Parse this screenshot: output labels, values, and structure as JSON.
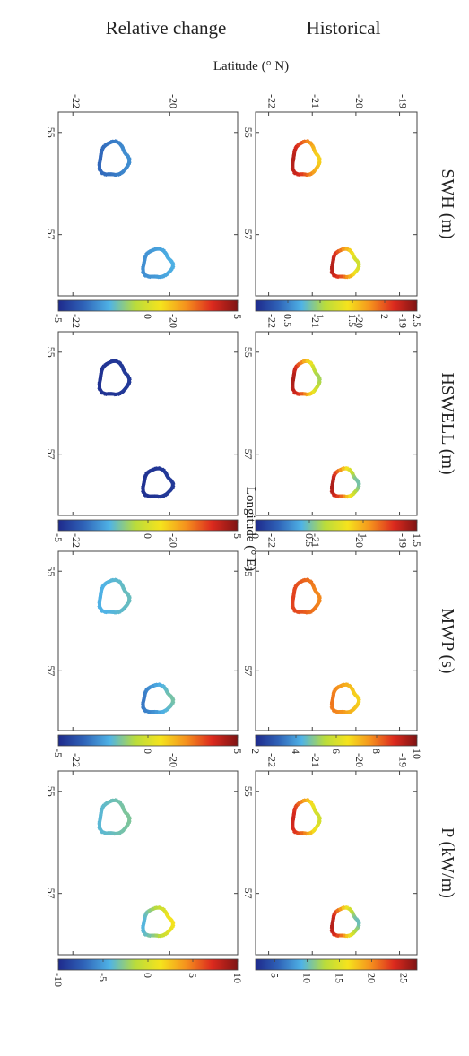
{
  "labels": {
    "historical": "Historical",
    "relative": "Relative change",
    "latitude": "Latitude (° N)",
    "longitude": "Longitude (° E)"
  },
  "variables": [
    {
      "key": "swh",
      "title": "SWH (m)"
    },
    {
      "key": "hswell",
      "title": "HSWELL (m)"
    },
    {
      "key": "mwp",
      "title": "MWP (s)"
    },
    {
      "key": "p",
      "title": "P (kW/m)"
    }
  ],
  "chart_data": {
    "type": "heatmap",
    "layout": "2 rows (Historical, Relative change) x 4 columns (SWH, HSWELL, MWP, P); figure rotated 90 degrees",
    "x_axis": {
      "label": "Longitude (° E)",
      "range": [
        54.6,
        58.2
      ],
      "ticks": [
        55,
        57
      ]
    },
    "y_axis": {
      "label": "Latitude (° N)",
      "historical_ticks": [
        -22,
        -21,
        -20,
        -19
      ],
      "relative_ticks": [
        -22,
        -20
      ],
      "range": [
        -22.3,
        -18.6
      ]
    },
    "islands": [
      {
        "name": "west",
        "lon_range": [
          55.2,
          55.85
        ],
        "lat_range": [
          -21.45,
          -20.85
        ]
      },
      {
        "name": "east",
        "lon_range": [
          57.3,
          57.85
        ],
        "lat_range": [
          -20.55,
          -19.95
        ]
      }
    ],
    "colormap": [
      "#1e2a8c",
      "#2f63b8",
      "#4fb3e6",
      "#b9dc3c",
      "#f5e31d",
      "#f5901d",
      "#dc2a1e",
      "#7f1414"
    ],
    "panels": [
      {
        "row": "Historical",
        "variable": "SWH (m)",
        "cbar_ticks": [
          "0.5",
          "1",
          "1.5",
          "2",
          "2.5"
        ],
        "cbar_range": [
          0,
          2.5
        ],
        "west": {
          "south": 2.3,
          "north": 1.5
        },
        "east": {
          "south": 2.3,
          "north": 1.2
        }
      },
      {
        "row": "Historical",
        "variable": "HSWELL (m)",
        "cbar_ticks": [
          "0",
          "0.5",
          "1",
          "1.5"
        ],
        "cbar_range": [
          0,
          1.5
        ],
        "west": {
          "south": 1.4,
          "north": 0.6
        },
        "east": {
          "south": 1.4,
          "north": 0.5
        }
      },
      {
        "row": "Historical",
        "variable": "MWP (s)",
        "cbar_ticks": [
          "2",
          "4",
          "6",
          "8",
          "10"
        ],
        "cbar_range": [
          2,
          10
        ],
        "west": {
          "south": 8.6,
          "north": 7.8
        },
        "east": {
          "south": 8.0,
          "north": 6.8
        }
      },
      {
        "row": "Historical",
        "variable": "P (kW/m)",
        "cbar_ticks": [
          "5",
          "10",
          "15",
          "20",
          "25"
        ],
        "cbar_range": [
          2,
          27
        ],
        "west": {
          "south": 24,
          "north": 14
        },
        "east": {
          "south": 25,
          "north": 10
        }
      },
      {
        "row": "Relative change",
        "variable": "SWH (m)",
        "cbar_ticks": [
          "-5",
          "0",
          "5"
        ],
        "cbar_range": [
          -5,
          5
        ],
        "west": {
          "south": -3.5,
          "north": -2.8
        },
        "east": {
          "south": -2.8,
          "north": -2.2
        }
      },
      {
        "row": "Relative change",
        "variable": "HSWELL (m)",
        "cbar_ticks": [
          "-5",
          "0",
          "5"
        ],
        "cbar_range": [
          -5,
          5
        ],
        "west": {
          "south": -4.8,
          "north": -4.6
        },
        "east": {
          "south": -4.8,
          "north": -4.6
        }
      },
      {
        "row": "Relative change",
        "variable": "MWP (s)",
        "cbar_ticks": [
          "-5",
          "0",
          "5"
        ],
        "cbar_range": [
          -5,
          5
        ],
        "west": {
          "south": -2.2,
          "north": -1.8
        },
        "east": {
          "south": -3.2,
          "north": -1.6
        }
      },
      {
        "row": "Relative change",
        "variable": "P (kW/m)",
        "cbar_ticks": [
          "-10",
          "-5",
          "0",
          "5",
          "10"
        ],
        "cbar_range": [
          -10,
          10
        ],
        "west": {
          "south": -4.0,
          "north": -3.0
        },
        "east": {
          "south": -4.2,
          "north": 1.5
        }
      }
    ]
  }
}
